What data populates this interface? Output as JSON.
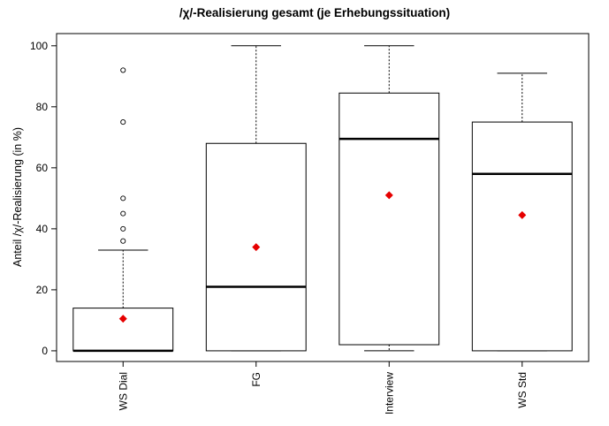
{
  "chart_data": {
    "type": "boxplot",
    "title": "/χ/-Realisierung gesamt (je Erhebungssituation)",
    "xlabel": "",
    "ylabel": "Anteil /χ/-Realisierung (in %)",
    "ylim": [
      -3.5,
      104
    ],
    "yticks": [
      0,
      20,
      40,
      60,
      80,
      100
    ],
    "categories": [
      "WS Dial",
      "FG",
      "Interview",
      "WS Std"
    ],
    "boxes": [
      {
        "whisker_low": 0,
        "q1": 0,
        "median": 0,
        "q3": 14,
        "whisker_high": 33,
        "mean": 10.5,
        "outliers": [
          36,
          40,
          45,
          50,
          75,
          92
        ]
      },
      {
        "whisker_low": 0,
        "q1": 0,
        "median": 21,
        "q3": 68,
        "whisker_high": 100,
        "mean": 34,
        "outliers": []
      },
      {
        "whisker_low": 0,
        "q1": 2,
        "median": 69.5,
        "q3": 84.5,
        "whisker_high": 100,
        "mean": 51,
        "outliers": []
      },
      {
        "whisker_low": 0,
        "q1": 0,
        "median": 58,
        "q3": 75,
        "whisker_high": 91,
        "mean": 44.5,
        "outliers": []
      }
    ],
    "mean_marker_color": "#e60000",
    "legend": "none",
    "grid": false
  }
}
